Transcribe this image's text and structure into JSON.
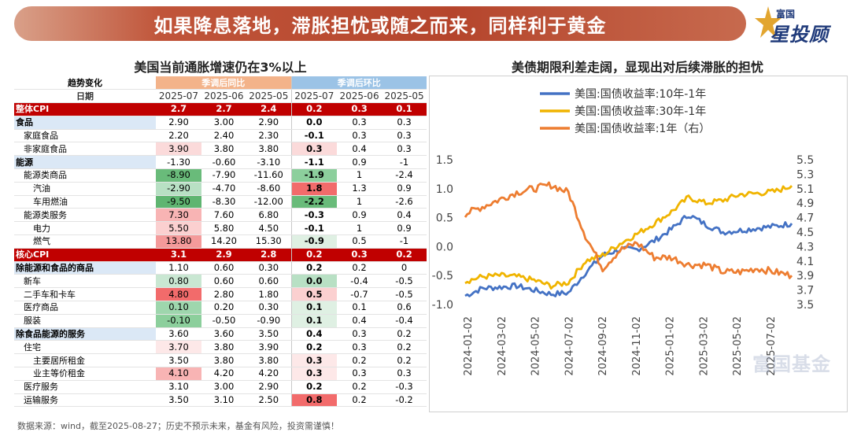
{
  "banner_title": "如果降息落地，滞胀担忧或随之而来，同样利于黄金",
  "logo": {
    "top": "富国",
    "main": "星投顾"
  },
  "watermark": "富国基金",
  "left_title": "美国当前通胀增速仍在3%以上",
  "right_title": "美债期限利差走阔，显现出对后续滞胀的担忧",
  "footer": "数据来源：wind，截至2025-08-27；历史不预示未来，基金有风险，投资需谨慎！",
  "table": {
    "header_trend": "趋势变化",
    "header_date": "日期",
    "yoy_label": "季调后同比",
    "mom_label": "季调后环比",
    "dates": [
      "2025-07",
      "2025-06",
      "2025-05",
      "2025-07",
      "2025-06",
      "2025-05"
    ],
    "rows": [
      {
        "label": "整体CPI",
        "indent": 0,
        "style": "red",
        "yoy": [
          "2.7",
          "2.7",
          "2.4"
        ],
        "mom": [
          "0.2",
          "0.3",
          "0.1"
        ],
        "yoy_color": "",
        "mom_color": ""
      },
      {
        "label": "食品",
        "indent": 0,
        "style": "blue",
        "yoy": [
          "2.90",
          "3.00",
          "2.90"
        ],
        "mom": [
          "0.0",
          "0.3",
          "0.3"
        ],
        "yoy_color": "",
        "mom_color": ""
      },
      {
        "label": "家庭食品",
        "indent": 1,
        "style": "",
        "yoy": [
          "2.20",
          "2.40",
          "2.30"
        ],
        "mom": [
          "-0.1",
          "0.3",
          "0.3"
        ],
        "yoy_color": "",
        "mom_color": ""
      },
      {
        "label": "非家庭食品",
        "indent": 1,
        "style": "",
        "yoy": [
          "3.90",
          "3.80",
          "3.80"
        ],
        "mom": [
          "0.3",
          "0.4",
          "0.3"
        ],
        "yoy_color": "#fbdada",
        "mom_color": "#fbdada"
      },
      {
        "label": "能源",
        "indent": 0,
        "style": "blue",
        "yoy": [
          "-1.30",
          "-0.60",
          "-3.10"
        ],
        "mom": [
          "-1.1",
          "0.9",
          "-1"
        ],
        "yoy_color": "",
        "mom_color": "#b8e0c4"
      },
      {
        "label": "能源类商品",
        "indent": 1,
        "style": "",
        "yoy": [
          "-8.90",
          "-7.90",
          "-11.60"
        ],
        "mom": [
          "-1.9",
          "1",
          "-2.4"
        ],
        "yoy_color": "#69bb7a",
        "mom_color": "#8ccf9c"
      },
      {
        "label": "汽油",
        "indent": 2,
        "style": "",
        "yoy": [
          "-2.90",
          "-4.70",
          "-8.60"
        ],
        "mom": [
          "1.8",
          "1.3",
          "0.9"
        ],
        "yoy_color": "#b8e0c4",
        "mom_color": "#f26b6b"
      },
      {
        "label": "车用燃油",
        "indent": 2,
        "style": "",
        "yoy": [
          "-9.50",
          "-8.30",
          "-12.00"
        ],
        "mom": [
          "-2.2",
          "1",
          "-2.6"
        ],
        "yoy_color": "#5fb571",
        "mom_color": "#69bb7a"
      },
      {
        "label": "能源类服务",
        "indent": 1,
        "style": "",
        "yoy": [
          "7.30",
          "7.60",
          "6.80"
        ],
        "mom": [
          "-0.3",
          "0.9",
          "0.4"
        ],
        "yoy_color": "#f8b4b4",
        "mom_color": ""
      },
      {
        "label": "电力",
        "indent": 2,
        "style": "",
        "yoy": [
          "5.50",
          "5.80",
          "4.50"
        ],
        "mom": [
          "-0.1",
          "1",
          "0.9"
        ],
        "yoy_color": "#fbd0d0",
        "mom_color": ""
      },
      {
        "label": "燃气",
        "indent": 2,
        "style": "",
        "yoy": [
          "13.80",
          "14.20",
          "15.30"
        ],
        "mom": [
          "-0.9",
          "0.5",
          "-1"
        ],
        "yoy_color": "#f49a9a",
        "mom_color": "#dff0e3"
      },
      {
        "label": "核心CPI",
        "indent": 0,
        "style": "red",
        "yoy": [
          "3.1",
          "2.9",
          "2.8"
        ],
        "mom": [
          "0.2",
          "0.3",
          "0.2"
        ],
        "yoy_color": "",
        "mom_color": ""
      },
      {
        "label": "除能源和食品的商品",
        "indent": 0,
        "style": "blue",
        "yoy": [
          "1.10",
          "0.60",
          "0.30"
        ],
        "mom": [
          "0.2",
          "0.2",
          "0"
        ],
        "yoy_color": "#dff0e3",
        "mom_color": ""
      },
      {
        "label": "新车",
        "indent": 1,
        "style": "",
        "yoy": [
          "0.80",
          "0.60",
          "0.60"
        ],
        "mom": [
          "0.0",
          "-0.4",
          "-0.5"
        ],
        "yoy_color": "#c9e7d2",
        "mom_color": "#b8e0c4"
      },
      {
        "label": "二手车和卡车",
        "indent": 1,
        "style": "",
        "yoy": [
          "4.80",
          "2.80",
          "1.80"
        ],
        "mom": [
          "0.5",
          "-0.7",
          "-0.5"
        ],
        "yoy_color": "#f26b6b",
        "mom_color": "#fbd0d0"
      },
      {
        "label": "医疗商品",
        "indent": 1,
        "style": "",
        "yoy": [
          "0.10",
          "0.20",
          "0.30"
        ],
        "mom": [
          "0.1",
          "0.1",
          "0.6"
        ],
        "yoy_color": "#9ed6ad",
        "mom_color": "#dff0e3"
      },
      {
        "label": "服装",
        "indent": 1,
        "style": "",
        "yoy": [
          "-0.10",
          "-0.50",
          "-0.90"
        ],
        "mom": [
          "0.1",
          "0.4",
          "-0.4"
        ],
        "yoy_color": "#8ccf9c",
        "mom_color": "#dff0e3"
      },
      {
        "label": "除食品能源的服务",
        "indent": 0,
        "style": "blue",
        "yoy": [
          "3.60",
          "3.60",
          "3.50"
        ],
        "mom": [
          "0.4",
          "0.3",
          "0.2"
        ],
        "yoy_color": "",
        "mom_color": "#fbdada"
      },
      {
        "label": "住宅",
        "indent": 1,
        "style": "",
        "yoy": [
          "3.70",
          "3.80",
          "3.90"
        ],
        "mom": [
          "0.2",
          "0.3",
          "0.2"
        ],
        "yoy_color": "#fde8e8",
        "mom_color": ""
      },
      {
        "label": "主要居所租金",
        "indent": 2,
        "style": "",
        "yoy": [
          "3.50",
          "3.80",
          "3.80"
        ],
        "mom": [
          "0.3",
          "0.2",
          "0.2"
        ],
        "yoy_color": "",
        "mom_color": "#fde8e8"
      },
      {
        "label": "业主等价租金",
        "indent": 2,
        "style": "",
        "yoy": [
          "4.10",
          "4.20",
          "4.20"
        ],
        "mom": [
          "0.3",
          "0.3",
          "0.3"
        ],
        "yoy_color": "#f8b4b4",
        "mom_color": "#fde8e8"
      },
      {
        "label": "医疗服务",
        "indent": 1,
        "style": "",
        "yoy": [
          "3.10",
          "3.00",
          "2.90"
        ],
        "mom": [
          "0.2",
          "0.2",
          "-0.3"
        ],
        "yoy_color": "",
        "mom_color": ""
      },
      {
        "label": "运输服务",
        "indent": 1,
        "style": "",
        "yoy": [
          "3.50",
          "3.10",
          "2.50"
        ],
        "mom": [
          "0.8",
          "0.2",
          "-0.2"
        ],
        "yoy_color": "",
        "mom_color": "#f26b6b"
      }
    ]
  },
  "chart_data": {
    "type": "line",
    "title": "美债期限利差走阔，显现出对后续滞胀的担忧",
    "legend_position": "top",
    "x": [
      "2024-01",
      "2024-02",
      "2024-03",
      "2024-04",
      "2024-05",
      "2024-06",
      "2024-07",
      "2024-08",
      "2024-09",
      "2024-10",
      "2024-11",
      "2024-12",
      "2025-01",
      "2025-02",
      "2025-03",
      "2025-04",
      "2025-05",
      "2025-06",
      "2025-07",
      "2025-08"
    ],
    "xticks": [
      "2024-01-02",
      "2024-03-02",
      "2024-05-02",
      "2024-07-02",
      "2024-09-02",
      "2024-11-02",
      "2025-01-02",
      "2025-03-02",
      "2025-05-02",
      "2025-07-02"
    ],
    "y_left": {
      "ticks": [
        "-1.0",
        "-0.5",
        "0.0",
        "0.5",
        "1.0",
        "1.5"
      ],
      "range": [
        -1.0,
        1.5
      ]
    },
    "y_right": {
      "ticks": [
        "3.5",
        "3.7",
        "3.9",
        "4.1",
        "4.3",
        "4.5",
        "4.7",
        "4.9",
        "5.1",
        "5.3",
        "5.5"
      ],
      "range": [
        3.5,
        5.5
      ]
    },
    "series": [
      {
        "name": "美国:国债收益率:10年-1年",
        "axis": "left",
        "color": "#4472c4",
        "values": [
          -0.85,
          -0.72,
          -0.7,
          -0.68,
          -0.75,
          -0.82,
          -0.8,
          -0.45,
          -0.15,
          -0.05,
          -0.05,
          0.1,
          0.3,
          0.55,
          0.38,
          0.25,
          0.28,
          0.32,
          0.35,
          0.4
        ]
      },
      {
        "name": "美国:国债收益率:30年-1年",
        "axis": "left",
        "color": "#f0b400",
        "values": [
          -0.6,
          -0.52,
          -0.5,
          -0.52,
          -0.58,
          -0.68,
          -0.62,
          -0.25,
          -0.15,
          0.05,
          0.22,
          0.4,
          0.6,
          0.85,
          0.75,
          0.8,
          0.9,
          0.92,
          0.95,
          1.05
        ]
      },
      {
        "name": "美国:国债收益率:1年（右）",
        "axis": "right",
        "color": "#ed7d31",
        "values": [
          4.75,
          4.85,
          4.95,
          5.05,
          5.1,
          5.15,
          5.05,
          4.45,
          4.0,
          4.25,
          4.35,
          4.15,
          4.15,
          4.05,
          4.05,
          3.95,
          3.95,
          4.0,
          3.95,
          3.9
        ]
      }
    ]
  }
}
